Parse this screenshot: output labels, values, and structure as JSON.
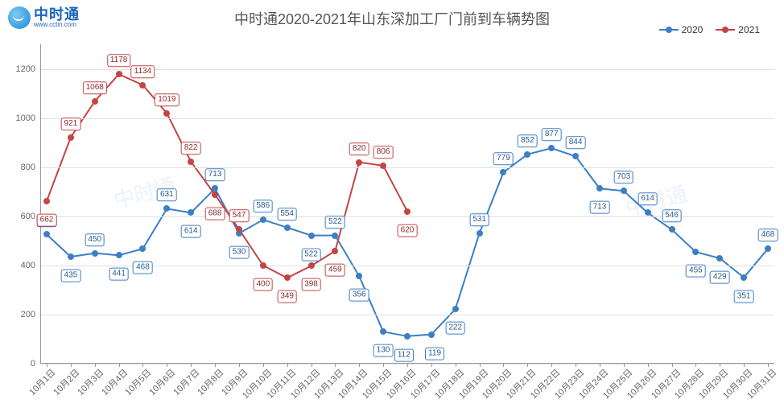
{
  "logo": {
    "cn": "中时通",
    "url": "www.cctin.com"
  },
  "title": "中时通2020-2021年山东深加工厂门前到车辆势图",
  "legend": [
    {
      "label": "2020",
      "color": "#3b7fc4"
    },
    {
      "label": "2021",
      "color": "#c44545"
    }
  ],
  "watermark": "中时通",
  "chart": {
    "type": "line",
    "ylim": [
      0,
      1300
    ],
    "yticks": [
      0,
      200,
      400,
      600,
      800,
      1000,
      1200
    ],
    "grid_color": "#e0e0e0",
    "axis_color": "#999999",
    "background_color": "#ffffff",
    "categories": [
      "10月1日",
      "10月2日",
      "10月3日",
      "10月4日",
      "10月5日",
      "10月6日",
      "10月7日",
      "10月8日",
      "10月9日",
      "10月10日",
      "10月11日",
      "10月12日",
      "10月13日",
      "10月14日",
      "10月15日",
      "10月16日",
      "10月17日",
      "10月18日",
      "10月19日",
      "10月20日",
      "10月21日",
      "10月22日",
      "10月23日",
      "10月24日",
      "10月25日",
      "10月26日",
      "10月27日",
      "10月28日",
      "10月29日",
      "10月30日",
      "10月31日"
    ],
    "series": [
      {
        "name": "2020",
        "color": "#3b7fc4",
        "marker_fill": "#bcd4ec",
        "label_border": "#3b7fc4",
        "label_text": "#2a5a8c",
        "line_width": 2,
        "marker_size": 8,
        "values": [
          526,
          435,
          450,
          441,
          468,
          631,
          614,
          713,
          530,
          586,
          554,
          522,
          522,
          356,
          130,
          112,
          119,
          222,
          531,
          779,
          852,
          877,
          844,
          713,
          703,
          614,
          546,
          455,
          429,
          351,
          468
        ],
        "label_offsets": [
          [
            0,
            -1
          ],
          [
            0,
            1
          ],
          [
            0,
            -1
          ],
          [
            0,
            1
          ],
          [
            0,
            1
          ],
          [
            0,
            -1
          ],
          [
            0,
            1
          ],
          [
            0,
            -1
          ],
          [
            0,
            1
          ],
          [
            0,
            -1
          ],
          [
            0,
            -1
          ],
          [
            0,
            1
          ],
          [
            0,
            -1
          ],
          [
            0,
            1
          ],
          [
            0,
            1
          ],
          [
            -0.3,
            1
          ],
          [
            0.3,
            1
          ],
          [
            0,
            1
          ],
          [
            0,
            -1
          ],
          [
            0,
            -1
          ],
          [
            0,
            -1
          ],
          [
            0,
            -1
          ],
          [
            0,
            -1
          ],
          [
            0,
            1
          ],
          [
            0,
            -1
          ],
          [
            0,
            -1
          ],
          [
            0,
            -1
          ],
          [
            0,
            1
          ],
          [
            0,
            1
          ],
          [
            0,
            1
          ],
          [
            0,
            -1
          ]
        ]
      },
      {
        "name": "2021",
        "color": "#c44545",
        "marker_fill": "#e8b8b8",
        "label_border": "#c44545",
        "label_text": "#8c2a2a",
        "line_width": 2,
        "marker_size": 8,
        "values": [
          662,
          921,
          1068,
          1178,
          1134,
          1019,
          822,
          688,
          547,
          400,
          349,
          398,
          459,
          820,
          806,
          620
        ],
        "label_offsets": [
          [
            0,
            1
          ],
          [
            0,
            -1
          ],
          [
            0,
            -1
          ],
          [
            0,
            -1
          ],
          [
            0,
            -1
          ],
          [
            0,
            -1
          ],
          [
            0,
            -1
          ],
          [
            0,
            1
          ],
          [
            0,
            -1
          ],
          [
            0,
            1
          ],
          [
            0,
            1
          ],
          [
            0,
            1
          ],
          [
            0,
            1
          ],
          [
            0,
            -1
          ],
          [
            0,
            -1
          ],
          [
            0,
            1
          ]
        ]
      }
    ]
  }
}
